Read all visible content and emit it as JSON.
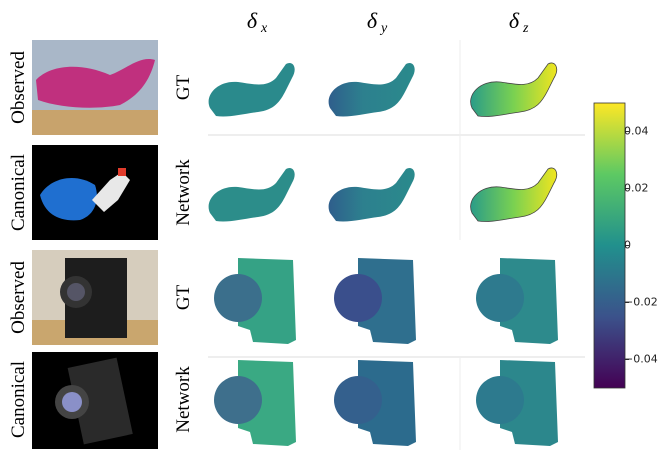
{
  "row_labels": [
    "Observed",
    "Canonical",
    "Observed",
    "Canonical"
  ],
  "row_sublabels": [
    "GT",
    "Network",
    "GT",
    "Network"
  ],
  "columns": [
    {
      "symbol": "δ",
      "subscript": "x"
    },
    {
      "symbol": "δ",
      "subscript": "y"
    },
    {
      "symbol": "δ",
      "subscript": "z"
    }
  ],
  "colorbar": {
    "lim": [
      -0.05,
      0.05
    ],
    "ticks": [
      {
        "value": -0.04,
        "label": "−0.04"
      },
      {
        "value": -0.02,
        "label": "−0.02"
      },
      0,
      0.02,
      0.04
    ]
  }
}
